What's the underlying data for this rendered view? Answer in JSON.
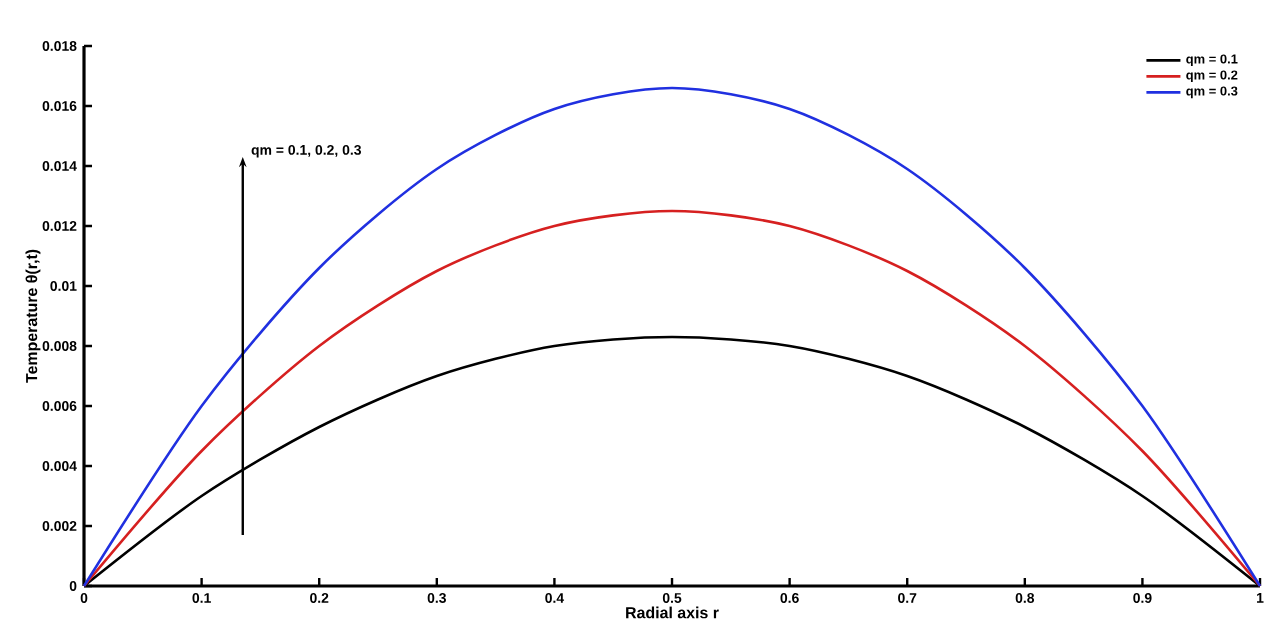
{
  "chart_data": {
    "type": "line",
    "xlabel": "Radial axis r",
    "ylabel": "Temperature θ(r,t)",
    "x": [
      0,
      0.1,
      0.2,
      0.3,
      0.4,
      0.5,
      0.6,
      0.7,
      0.8,
      0.9,
      1
    ],
    "series": [
      {
        "name": "qm = 0.1",
        "color": "#000000",
        "values": [
          0,
          0.003,
          0.0053,
          0.007,
          0.008,
          0.0083,
          0.008,
          0.007,
          0.0053,
          0.003,
          0
        ]
      },
      {
        "name": "qm = 0.2",
        "color": "#d62020",
        "values": [
          0,
          0.0045,
          0.008,
          0.0105,
          0.012,
          0.0125,
          0.012,
          0.0105,
          0.008,
          0.0045,
          0
        ]
      },
      {
        "name": "qm = 0.3",
        "color": "#2030e0",
        "values": [
          0,
          0.006,
          0.0106,
          0.0139,
          0.0159,
          0.0166,
          0.0159,
          0.0139,
          0.0106,
          0.006,
          0
        ]
      }
    ],
    "annotations": [
      "qm = 0.1, 0.2, 0.3"
    ],
    "xlim": [
      0,
      1
    ],
    "xticks": [
      0,
      0.1,
      0.2,
      0.3,
      0.4,
      0.5,
      0.6,
      0.7,
      0.8,
      0.9,
      1
    ],
    "ylim": [
      0,
      0.018
    ],
    "yticks": [
      0,
      0.002,
      0.004,
      0.006,
      0.008,
      0.01,
      0.012,
      0.014,
      0.016,
      0.018
    ],
    "grid": false,
    "legend": "top right",
    "marker": "none",
    "line_style": "solid"
  }
}
